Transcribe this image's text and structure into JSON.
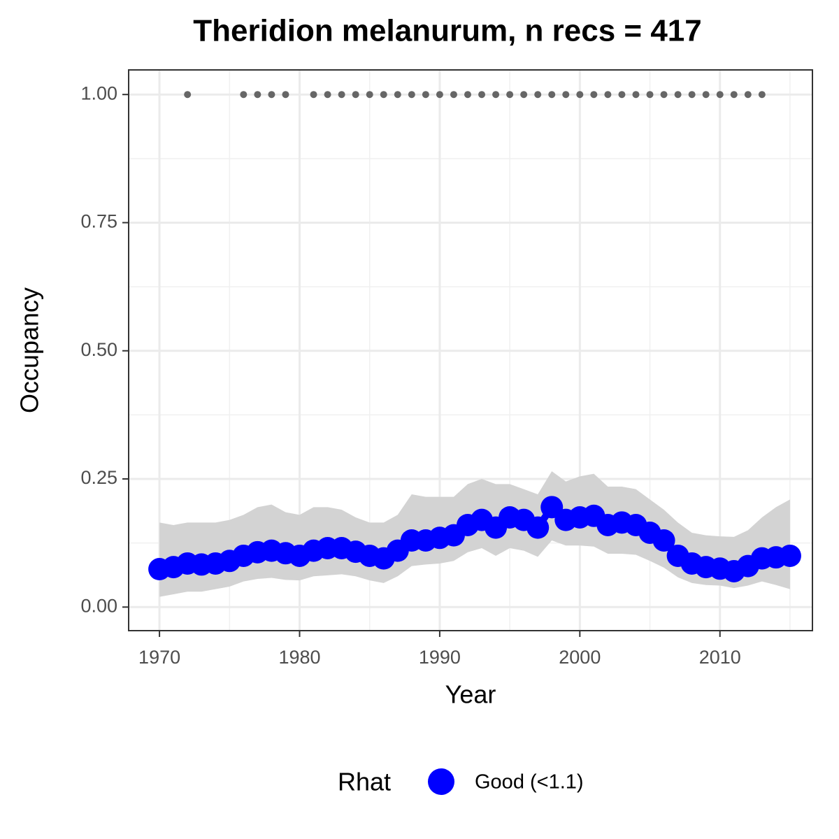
{
  "chart_data": {
    "type": "line",
    "title": "Theridion melanurum, n recs = 417",
    "x_label": "Year",
    "y_label": "Occupancy",
    "legend_title": "Rhat",
    "legend_position": "bottom",
    "x": [
      1970,
      1971,
      1972,
      1973,
      1974,
      1975,
      1976,
      1977,
      1978,
      1979,
      1980,
      1981,
      1982,
      1983,
      1984,
      1985,
      1986,
      1987,
      1988,
      1989,
      1990,
      1991,
      1992,
      1993,
      1994,
      1995,
      1996,
      1997,
      1998,
      1999,
      2000,
      2001,
      2002,
      2003,
      2004,
      2005,
      2006,
      2007,
      2008,
      2009,
      2010,
      2011,
      2012,
      2013,
      2014,
      2015
    ],
    "series": [
      {
        "name": "Good (<1.1)",
        "color": "#0000ff",
        "values": [
          0.074,
          0.078,
          0.085,
          0.083,
          0.085,
          0.09,
          0.1,
          0.107,
          0.11,
          0.105,
          0.1,
          0.11,
          0.115,
          0.115,
          0.108,
          0.1,
          0.095,
          0.11,
          0.13,
          0.13,
          0.135,
          0.14,
          0.16,
          0.17,
          0.155,
          0.175,
          0.17,
          0.155,
          0.195,
          0.17,
          0.175,
          0.178,
          0.16,
          0.165,
          0.16,
          0.145,
          0.13,
          0.1,
          0.085,
          0.078,
          0.075,
          0.07,
          0.08,
          0.095,
          0.097,
          0.1
        ]
      }
    ],
    "band": {
      "color": "#d3d3d3",
      "upper": [
        0.165,
        0.16,
        0.165,
        0.165,
        0.165,
        0.17,
        0.18,
        0.195,
        0.2,
        0.185,
        0.18,
        0.195,
        0.195,
        0.19,
        0.175,
        0.165,
        0.165,
        0.18,
        0.22,
        0.215,
        0.215,
        0.215,
        0.24,
        0.25,
        0.24,
        0.24,
        0.23,
        0.22,
        0.265,
        0.245,
        0.255,
        0.26,
        0.235,
        0.235,
        0.23,
        0.21,
        0.19,
        0.165,
        0.145,
        0.14,
        0.138,
        0.137,
        0.15,
        0.175,
        0.195,
        0.21
      ],
      "lower": [
        0.02,
        0.025,
        0.03,
        0.03,
        0.035,
        0.04,
        0.05,
        0.055,
        0.057,
        0.053,
        0.052,
        0.06,
        0.062,
        0.064,
        0.06,
        0.052,
        0.047,
        0.06,
        0.08,
        0.083,
        0.085,
        0.09,
        0.107,
        0.115,
        0.1,
        0.115,
        0.11,
        0.098,
        0.13,
        0.12,
        0.12,
        0.118,
        0.104,
        0.104,
        0.102,
        0.09,
        0.077,
        0.058,
        0.047,
        0.043,
        0.042,
        0.037,
        0.042,
        0.05,
        0.043,
        0.035
      ]
    },
    "records": {
      "color": "#666666",
      "x": [
        1972,
        1976,
        1977,
        1978,
        1979,
        1981,
        1982,
        1983,
        1984,
        1985,
        1986,
        1987,
        1988,
        1989,
        1990,
        1991,
        1992,
        1993,
        1994,
        1995,
        1996,
        1997,
        1998,
        1999,
        2000,
        2001,
        2002,
        2003,
        2004,
        2005,
        2006,
        2007,
        2008,
        2009,
        2010,
        2011,
        2012,
        2013
      ],
      "values": [
        1,
        1,
        1,
        1,
        1,
        1,
        1,
        1,
        1,
        1,
        1,
        1,
        1,
        1,
        1,
        1,
        1,
        1,
        1,
        1,
        1,
        1,
        1,
        1,
        1,
        1,
        1,
        1,
        1,
        1,
        1,
        1,
        1,
        1,
        1,
        1,
        1,
        1
      ]
    },
    "xlim": [
      1967.8,
      2016.6
    ],
    "xticks": [
      1970,
      1980,
      1990,
      2000,
      2010
    ],
    "ylim": [
      -0.046,
      1.048
    ],
    "yticks": [
      {
        "value": 0,
        "label": "0.00"
      },
      {
        "value": 0.25,
        "label": "0.25"
      },
      {
        "value": 0.5,
        "label": "0.50"
      },
      {
        "value": 0.75,
        "label": "0.75"
      },
      {
        "value": 1,
        "label": "1.00"
      }
    ],
    "grid": true
  }
}
